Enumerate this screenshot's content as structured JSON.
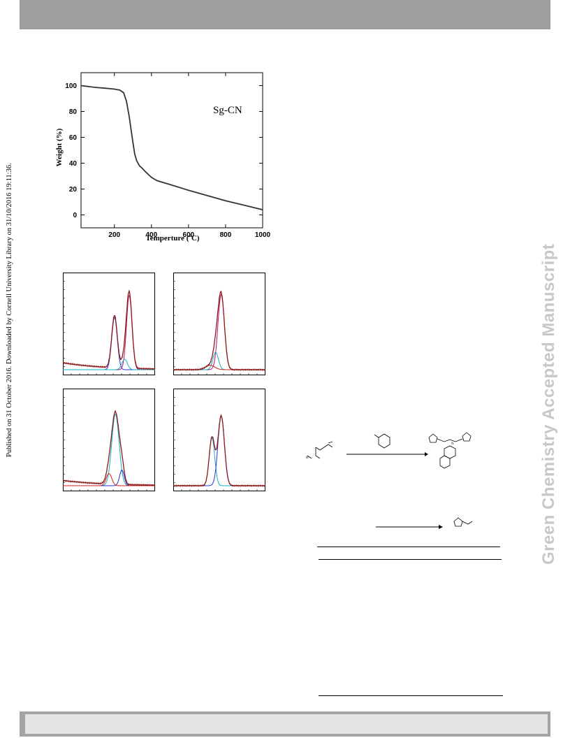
{
  "side_note": "Published on 31 October 2016. Downloaded by Cornell University Library on 31/10/2016 19:11:36.",
  "watermark": "Green Chemistry Accepted Manuscript",
  "chart_data": [
    {
      "type": "line",
      "title": "",
      "annotation": "Sg-CN",
      "xlabel": "Temperture (oC)",
      "xlabel_main": "Temperture (",
      "xlabel_sup": "o",
      "xlabel_end": "C)",
      "ylabel": "Weight (%)",
      "xlim": [
        20,
        1000
      ],
      "ylim": [
        -10,
        110
      ],
      "xticks": [
        "200",
        "400",
        "600",
        "800",
        "1000"
      ],
      "yticks": [
        "0",
        "20",
        "40",
        "60",
        "80",
        "100"
      ],
      "grid": false,
      "color": "#333333",
      "series": [
        {
          "x": [
            20,
            60,
            100,
            150,
            200,
            230,
            250,
            265,
            280,
            290,
            300,
            310,
            320,
            335,
            350,
            370,
            400,
            430,
            500,
            600,
            700,
            800,
            900,
            1000
          ],
          "y": [
            100,
            99.3,
            98.6,
            98.0,
            97.3,
            96.5,
            94.5,
            88,
            76,
            66,
            56,
            47,
            42,
            38,
            36,
            33,
            29,
            26.5,
            23.5,
            19,
            15,
            11,
            7.5,
            4
          ]
        }
      ]
    },
    {
      "type": "line",
      "title": "",
      "note": "four stacked spectrum panels with deconvoluted peaks; axes unlabeled",
      "colors": {
        "envelope": "#8b1a1a",
        "fit": "#c0106f",
        "peak_blue": "#3030d0",
        "peak_cyan": "#10b0c0",
        "peak_red": "#d02020"
      },
      "panels": [
        {
          "peaks": [
            {
              "center": 0.56,
              "height": 0.6,
              "width": 0.03,
              "color": "peak_blue"
            },
            {
              "center": 0.72,
              "height": 0.85,
              "width": 0.03,
              "color": "fit"
            },
            {
              "center": 0.67,
              "height": 0.12,
              "width": 0.03,
              "color": "peak_cyan"
            }
          ],
          "background": 0.08
        },
        {
          "peaks": [
            {
              "center": 0.52,
              "height": 0.86,
              "width": 0.035,
              "color": "fit"
            },
            {
              "center": 0.46,
              "height": 0.2,
              "width": 0.03,
              "color": "peak_cyan"
            },
            {
              "center": 0.4,
              "height": 0.05,
              "width": 0.05,
              "color": "peak_red"
            }
          ],
          "background": 0.0
        },
        {
          "peaks": [
            {
              "center": 0.57,
              "height": 0.82,
              "width": 0.04,
              "color": "peak_cyan"
            },
            {
              "center": 0.64,
              "height": 0.18,
              "width": 0.025,
              "color": "peak_blue"
            },
            {
              "center": 0.5,
              "height": 0.14,
              "width": 0.03,
              "color": "peak_red"
            }
          ],
          "background": 0.06
        },
        {
          "peaks": [
            {
              "center": 0.42,
              "height": 0.55,
              "width": 0.03,
              "color": "peak_cyan"
            },
            {
              "center": 0.52,
              "height": 0.8,
              "width": 0.035,
              "color": "peak_blue"
            }
          ],
          "background": 0.0
        }
      ]
    }
  ]
}
